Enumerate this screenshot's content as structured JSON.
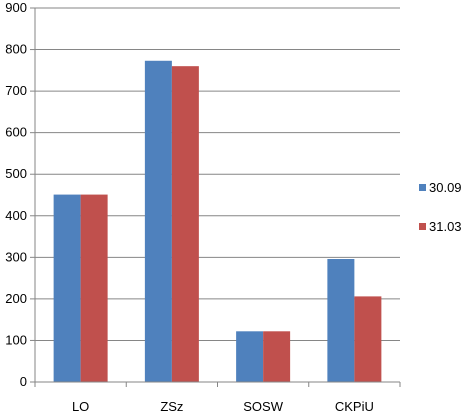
{
  "chart_data": {
    "type": "bar",
    "categories": [
      "LO",
      "ZSz",
      "SOSW",
      "CKPiU"
    ],
    "series": [
      {
        "name": "30.09",
        "values": [
          451,
          773,
          122,
          296
        ],
        "color": "#4F81BD"
      },
      {
        "name": "31.03",
        "values": [
          451,
          760,
          122,
          206
        ],
        "color": "#C0504D"
      }
    ],
    "ylim": [
      0,
      900
    ],
    "yticks": [
      0,
      100,
      200,
      300,
      400,
      500,
      600,
      700,
      800,
      900
    ],
    "grid": true,
    "legend_position": "right"
  }
}
